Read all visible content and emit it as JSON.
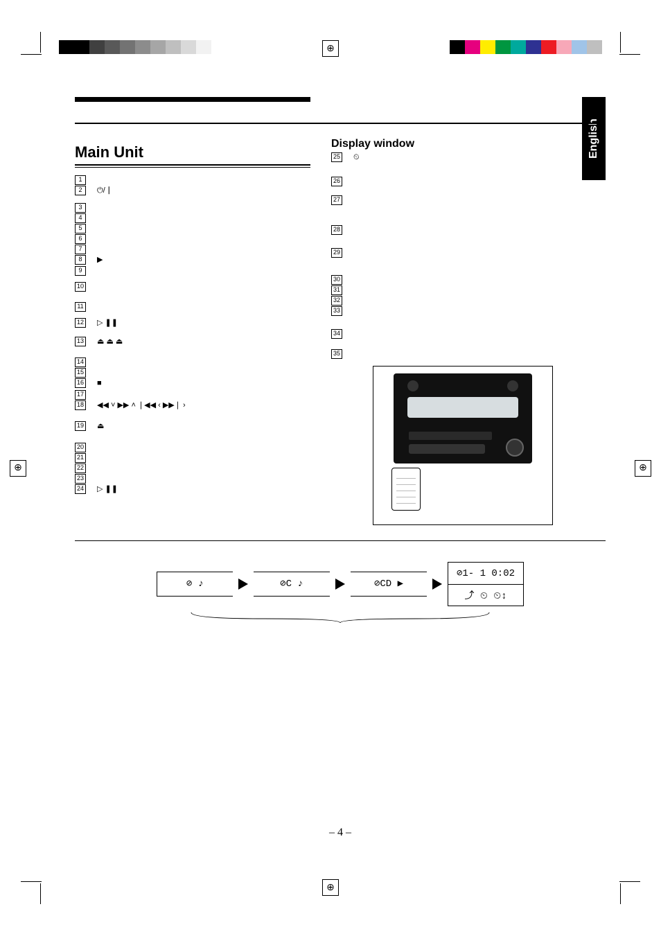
{
  "page": {
    "language_tab": "English",
    "page_number": "– 4 –"
  },
  "registration": {
    "left_swatches": [
      "#000000",
      "#000000",
      "#404040",
      "#595959",
      "#737373",
      "#8c8c8c",
      "#a6a6a6",
      "#bfbfbf",
      "#d9d9d9",
      "#f2f2f2"
    ],
    "right_swatches": [
      "#000000",
      "#e6007e",
      "#ffed00",
      "#009640",
      "#00a99d",
      "#2e3192",
      "#ed1c24",
      "#f7a8b8",
      "#a0c4e8",
      "#bfbfbf"
    ]
  },
  "main_unit": {
    "title": "Main Unit",
    "items": [
      {
        "n": "1",
        "sym": ""
      },
      {
        "n": "2",
        "sym": "⏻/┃"
      },
      {
        "n": "3",
        "sym": ""
      },
      {
        "n": "4",
        "sym": ""
      },
      {
        "n": "5",
        "sym": ""
      },
      {
        "n": "6",
        "sym": ""
      },
      {
        "n": "7",
        "sym": ""
      },
      {
        "n": "8",
        "sym": "▶"
      },
      {
        "n": "9",
        "sym": ""
      },
      {
        "n": "10",
        "sym": ""
      },
      {
        "n": "11",
        "sym": ""
      },
      {
        "n": "12",
        "sym": "▷  ❚❚"
      },
      {
        "n": "13",
        "sym": "⏏      ⏏      ⏏"
      },
      {
        "n": "14",
        "sym": ""
      },
      {
        "n": "15",
        "sym": ""
      },
      {
        "n": "16",
        "sym": "■"
      },
      {
        "n": "17",
        "sym": ""
      },
      {
        "n": "18",
        "sym": "◀◀ ˅  ▶▶ ˄  ❘◀◀ ‹  ▶▶❘ ›"
      },
      {
        "n": "19",
        "sym": "⏏"
      },
      {
        "n": "20",
        "sym": ""
      },
      {
        "n": "21",
        "sym": ""
      },
      {
        "n": "22",
        "sym": ""
      },
      {
        "n": "23",
        "sym": ""
      },
      {
        "n": "24",
        "sym": "▷  ❚❚"
      }
    ]
  },
  "display_window": {
    "title": "Display window",
    "items": [
      {
        "n": "25",
        "sym": "⏲"
      },
      {
        "n": "26",
        "sym": ""
      },
      {
        "n": "27",
        "sym": ""
      },
      {
        "n": "28",
        "sym": ""
      },
      {
        "n": "29",
        "sym": ""
      },
      {
        "n": "30",
        "sym": ""
      },
      {
        "n": "31",
        "sym": ""
      },
      {
        "n": "32",
        "sym": ""
      },
      {
        "n": "33",
        "sym": ""
      },
      {
        "n": "34",
        "sym": ""
      },
      {
        "n": "35",
        "sym": ""
      }
    ]
  },
  "flow": {
    "c1": "⊘ ♪",
    "c2": "⊘C ♪",
    "c3": "⊘CD  ▶",
    "c4_top": "⊘1- 1   0:02",
    "c4_bot": "⤴        ⏲   ⏲↕"
  }
}
